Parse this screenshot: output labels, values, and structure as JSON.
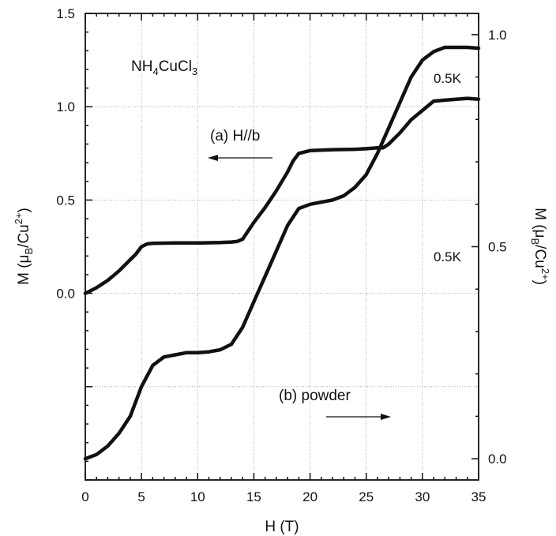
{
  "chart_data": {
    "type": "line",
    "compound": "NH4CuCl3",
    "xlabel": "H (T)",
    "xlim": [
      0,
      35
    ],
    "x_ticks": [
      "0",
      "5",
      "10",
      "15",
      "20",
      "25",
      "30",
      "35"
    ],
    "y_left": {
      "label": "M (μB/Cu2+)",
      "lim": [
        -1.0,
        1.5
      ],
      "ticks": [
        "0.0",
        "0.5",
        "1.0",
        "1.5"
      ]
    },
    "y_right": {
      "label": "M (μB/Cu2+)",
      "lim": [
        -0.05,
        1.05
      ],
      "ticks": [
        "0.0",
        "0.5",
        "1.0"
      ]
    },
    "grid": true,
    "series": [
      {
        "name": "(a) H//b",
        "temperature": "0.5K",
        "axis": "left",
        "x": [
          0,
          1,
          2,
          3,
          4,
          4.5,
          5,
          5.5,
          6,
          8,
          10,
          12,
          13,
          13.5,
          14,
          15,
          16,
          17,
          18,
          18.5,
          19,
          20,
          22,
          24,
          25,
          26,
          26.5,
          27,
          28,
          29,
          30,
          31,
          32,
          33,
          34,
          35
        ],
        "values": [
          0.0,
          0.03,
          0.07,
          0.12,
          0.18,
          0.21,
          0.25,
          0.265,
          0.268,
          0.27,
          0.27,
          0.272,
          0.275,
          0.278,
          0.29,
          0.38,
          0.46,
          0.55,
          0.65,
          0.71,
          0.75,
          0.765,
          0.77,
          0.772,
          0.775,
          0.78,
          0.78,
          0.8,
          0.86,
          0.93,
          0.98,
          1.03,
          1.035,
          1.04,
          1.045,
          1.04
        ]
      },
      {
        "name": "(b) powder",
        "temperature": "0.5K",
        "axis": "right",
        "x": [
          0,
          1,
          2,
          3,
          4,
          5,
          6,
          7,
          8,
          9,
          10,
          11,
          12,
          13,
          14,
          15,
          16,
          17,
          18,
          19,
          20,
          21,
          22,
          23,
          24,
          25,
          26,
          27,
          28,
          29,
          30,
          31,
          32,
          33,
          34,
          35
        ],
        "values": [
          0.0,
          0.01,
          0.03,
          0.06,
          0.1,
          0.17,
          0.22,
          0.24,
          0.245,
          0.25,
          0.25,
          0.252,
          0.257,
          0.27,
          0.31,
          0.37,
          0.43,
          0.49,
          0.55,
          0.59,
          0.6,
          0.605,
          0.61,
          0.62,
          0.64,
          0.67,
          0.72,
          0.78,
          0.84,
          0.9,
          0.94,
          0.96,
          0.97,
          0.97,
          0.97,
          0.968
        ]
      }
    ]
  }
}
